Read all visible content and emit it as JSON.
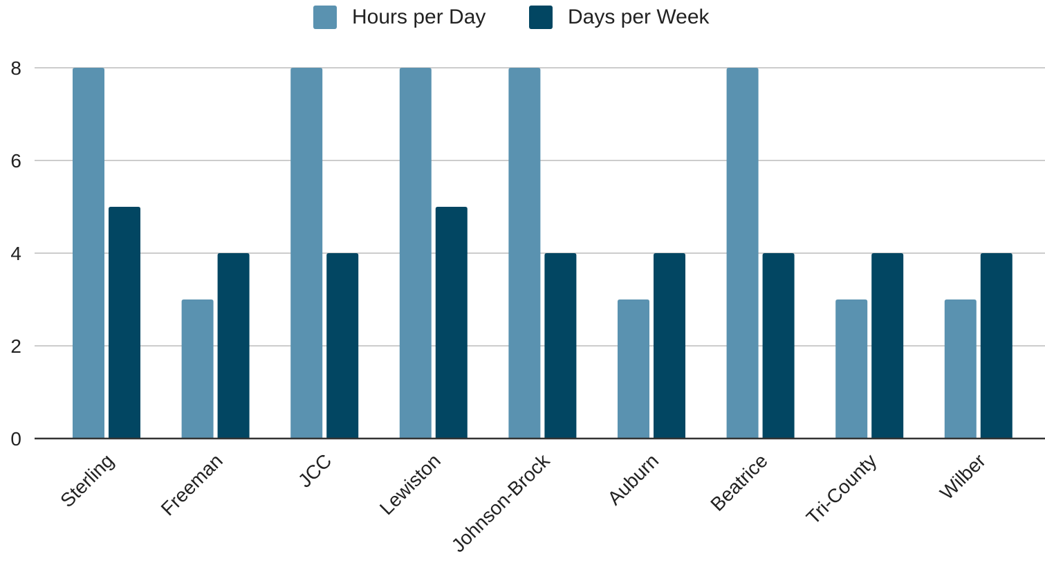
{
  "chart_data": {
    "type": "bar",
    "categories": [
      "Sterling",
      "Freeman",
      "JCC",
      "Lewiston",
      "Johnson-Brock",
      "Auburn",
      "Beatrice",
      "Tri-County",
      "Wilber"
    ],
    "series": [
      {
        "name": "Hours per Day",
        "color": "#5a92b0",
        "values": [
          8,
          3,
          8,
          8,
          8,
          3,
          8,
          3,
          3
        ]
      },
      {
        "name": "Days per Week",
        "color": "#024662",
        "values": [
          5,
          4,
          4,
          5,
          4,
          4,
          4,
          4,
          4
        ]
      }
    ],
    "title": "",
    "xlabel": "",
    "ylabel": "",
    "ylim": [
      0,
      8
    ],
    "yticks": [
      0,
      2,
      4,
      6,
      8
    ],
    "grid": true,
    "legend_position": "top-center"
  }
}
